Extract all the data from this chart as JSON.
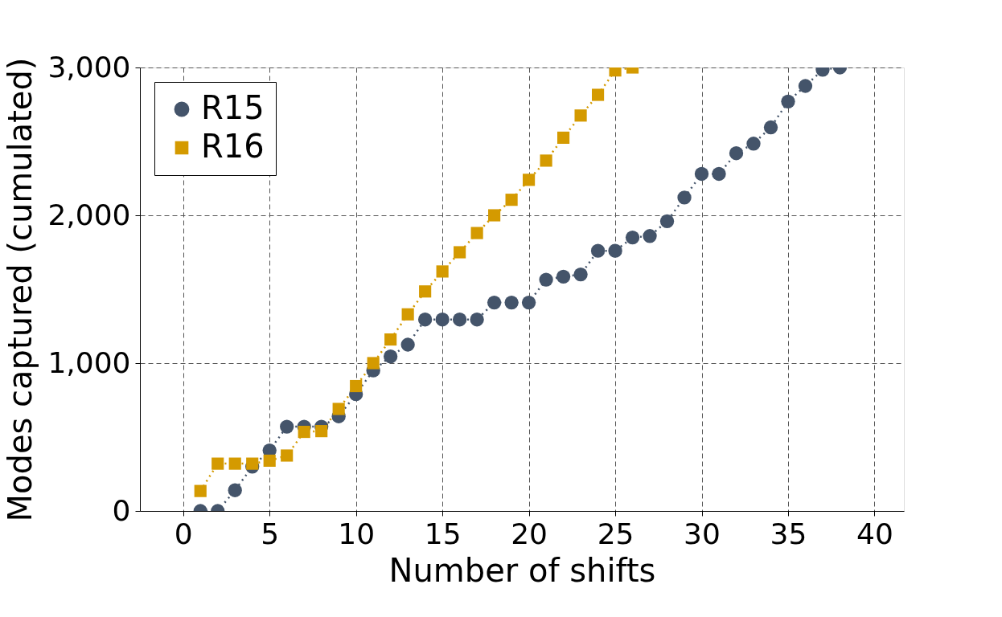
{
  "chart_data": {
    "type": "line",
    "xlabel": "Number of shifts",
    "ylabel": "Modes captured (cumulated)",
    "xlim": [
      -2.5,
      41.7
    ],
    "ylim": [
      0,
      3000
    ],
    "xticks": [
      0,
      5,
      10,
      15,
      20,
      25,
      30,
      35,
      40
    ],
    "yticks": [
      0,
      {
        "value": 1000,
        "label": "1,000"
      },
      {
        "value": 2000,
        "label": "2,000"
      },
      {
        "value": 3000,
        "label": "3,000"
      }
    ],
    "grid": true,
    "legend": "top left",
    "line_style": "dotted",
    "series": [
      {
        "name": "R15",
        "color": "#44546a",
        "marker": "circle",
        "x": [
          1,
          2,
          3,
          4,
          5,
          6,
          7,
          8,
          9,
          10,
          11,
          12,
          13,
          14,
          15,
          16,
          17,
          18,
          19,
          20,
          21,
          22,
          23,
          24,
          25,
          26,
          27,
          28,
          29,
          30,
          31,
          32,
          33,
          34,
          35,
          36,
          37,
          38
        ],
        "values": [
          0,
          0,
          140,
          300,
          410,
          570,
          570,
          570,
          640,
          790,
          950,
          1045,
          1125,
          1295,
          1295,
          1295,
          1295,
          1410,
          1410,
          1410,
          1565,
          1585,
          1600,
          1760,
          1760,
          1850,
          1860,
          1960,
          2120,
          2280,
          2280,
          2420,
          2485,
          2595,
          2770,
          2875,
          2985,
          3000
        ]
      },
      {
        "name": "R16",
        "color": "#d49a00",
        "marker": "square",
        "x": [
          1,
          2,
          3,
          4,
          5,
          6,
          7,
          8,
          9,
          10,
          11,
          12,
          13,
          14,
          15,
          16,
          17,
          18,
          19,
          20,
          21,
          22,
          23,
          24,
          25,
          26
        ],
        "values": [
          135,
          320,
          320,
          320,
          340,
          375,
          535,
          540,
          690,
          845,
          1000,
          1160,
          1330,
          1485,
          1620,
          1750,
          1880,
          2000,
          2105,
          2240,
          2370,
          2525,
          2675,
          2815,
          2980,
          3000
        ]
      }
    ]
  }
}
